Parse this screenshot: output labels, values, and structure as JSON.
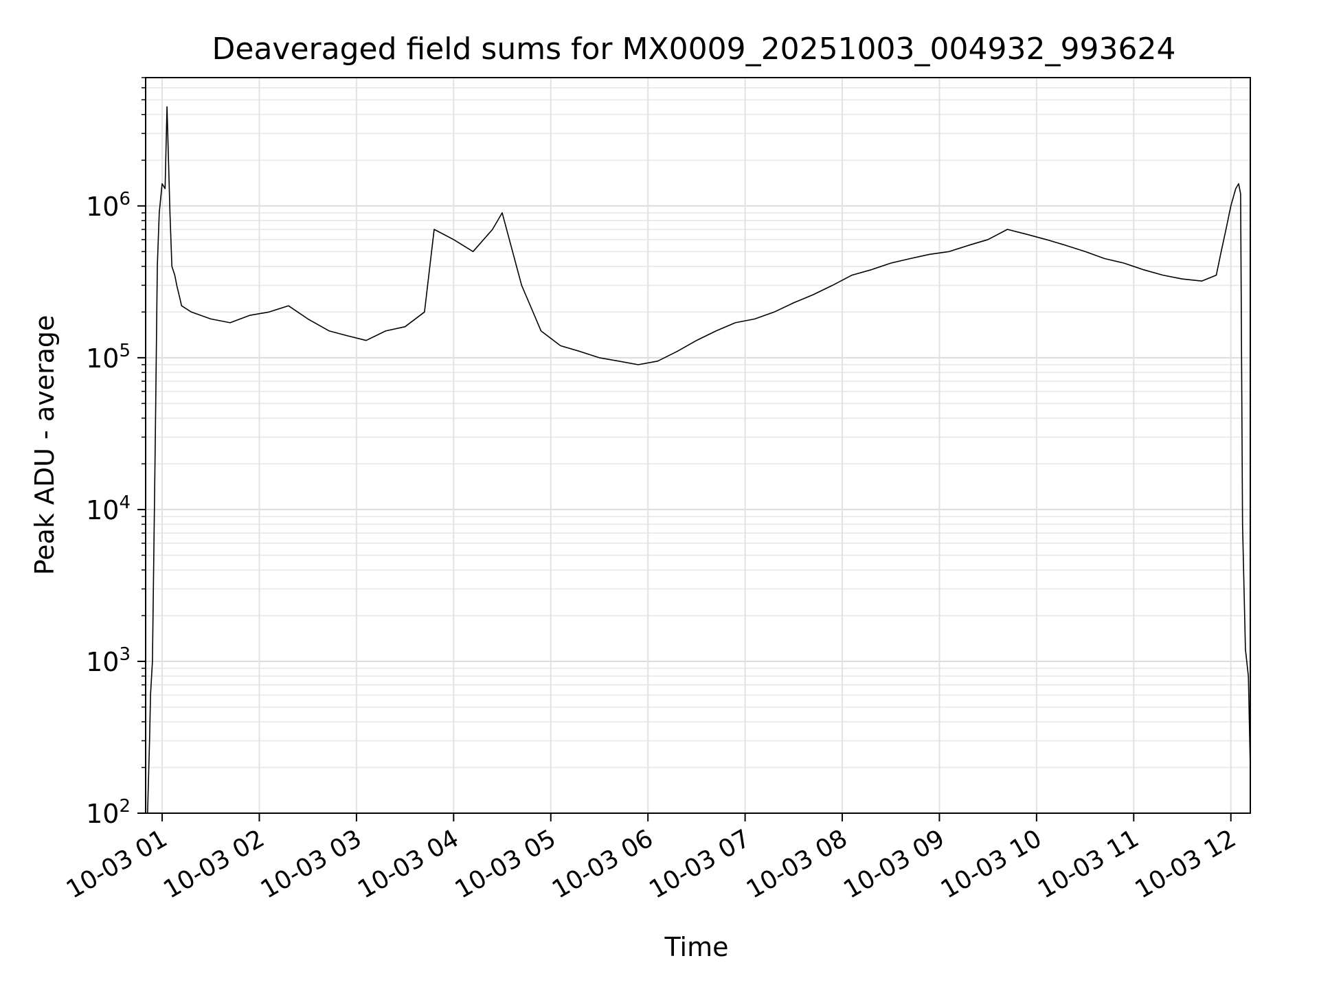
{
  "chart_data": {
    "type": "line",
    "title": "Deaveraged field sums for MX0009_20251003_004932_993624",
    "xlabel": "Time",
    "ylabel": "Peak ADU - average",
    "yscale": "log",
    "ylim": [
      100,
      7000000
    ],
    "xlim_hours": [
      0.83,
      12.2
    ],
    "grid": true,
    "line_color": "#000000",
    "x_tick_labels": [
      {
        "hour": 1,
        "label": "10-03 01"
      },
      {
        "hour": 2,
        "label": "10-03 02"
      },
      {
        "hour": 3,
        "label": "10-03 03"
      },
      {
        "hour": 4,
        "label": "10-03 04"
      },
      {
        "hour": 5,
        "label": "10-03 05"
      },
      {
        "hour": 6,
        "label": "10-03 06"
      },
      {
        "hour": 7,
        "label": "10-03 07"
      },
      {
        "hour": 8,
        "label": "10-03 08"
      },
      {
        "hour": 9,
        "label": "10-03 09"
      },
      {
        "hour": 10,
        "label": "10-03 10"
      },
      {
        "hour": 11,
        "label": "10-03 11"
      },
      {
        "hour": 12,
        "label": "10-03 12"
      }
    ],
    "y_tick_labels": [
      {
        "value": 100,
        "base": "10",
        "exp": "2"
      },
      {
        "value": 1000,
        "base": "10",
        "exp": "3"
      },
      {
        "value": 10000,
        "base": "10",
        "exp": "4"
      },
      {
        "value": 100000,
        "base": "10",
        "exp": "5"
      },
      {
        "value": 1000000,
        "base": "10",
        "exp": "6"
      }
    ],
    "series": [
      {
        "name": "deaveraged field sum",
        "x_hours": [
          0.85,
          0.87,
          0.88,
          0.9,
          0.93,
          0.95,
          0.97,
          1.0,
          1.03,
          1.05,
          1.08,
          1.1,
          1.13,
          1.15,
          1.18,
          1.2,
          1.3,
          1.5,
          1.7,
          1.9,
          2.1,
          2.3,
          2.5,
          2.72,
          2.9,
          3.1,
          3.3,
          3.5,
          3.7,
          3.8,
          4.0,
          4.2,
          4.4,
          4.5,
          4.7,
          4.9,
          5.1,
          5.3,
          5.5,
          5.7,
          5.9,
          6.1,
          6.3,
          6.5,
          6.7,
          6.9,
          7.1,
          7.3,
          7.5,
          7.7,
          7.9,
          8.1,
          8.3,
          8.5,
          8.7,
          8.9,
          9.1,
          9.3,
          9.5,
          9.7,
          9.9,
          10.1,
          10.3,
          10.5,
          10.7,
          10.9,
          11.1,
          11.3,
          11.5,
          11.7,
          11.85,
          11.9,
          11.95,
          12.0,
          12.05,
          12.08,
          12.1,
          12.12,
          12.15,
          12.18,
          12.2
        ],
        "values": [
          100,
          300,
          600,
          1000,
          30000,
          400000,
          900000,
          1400000,
          1300000,
          4500000,
          900000,
          400000,
          350000,
          300000,
          250000,
          220000,
          200000,
          180000,
          170000,
          190000,
          200000,
          220000,
          180000,
          150000,
          140000,
          130000,
          150000,
          160000,
          200000,
          700000,
          600000,
          500000,
          700000,
          900000,
          300000,
          150000,
          120000,
          110000,
          100000,
          95000,
          90000,
          95000,
          110000,
          130000,
          150000,
          170000,
          180000,
          200000,
          230000,
          260000,
          300000,
          350000,
          380000,
          420000,
          450000,
          480000,
          500000,
          550000,
          600000,
          700000,
          650000,
          600000,
          550000,
          500000,
          450000,
          420000,
          380000,
          350000,
          330000,
          320000,
          350000,
          500000,
          700000,
          1000000,
          1300000,
          1400000,
          1200000,
          8000,
          1200,
          800,
          200
        ]
      }
    ]
  }
}
